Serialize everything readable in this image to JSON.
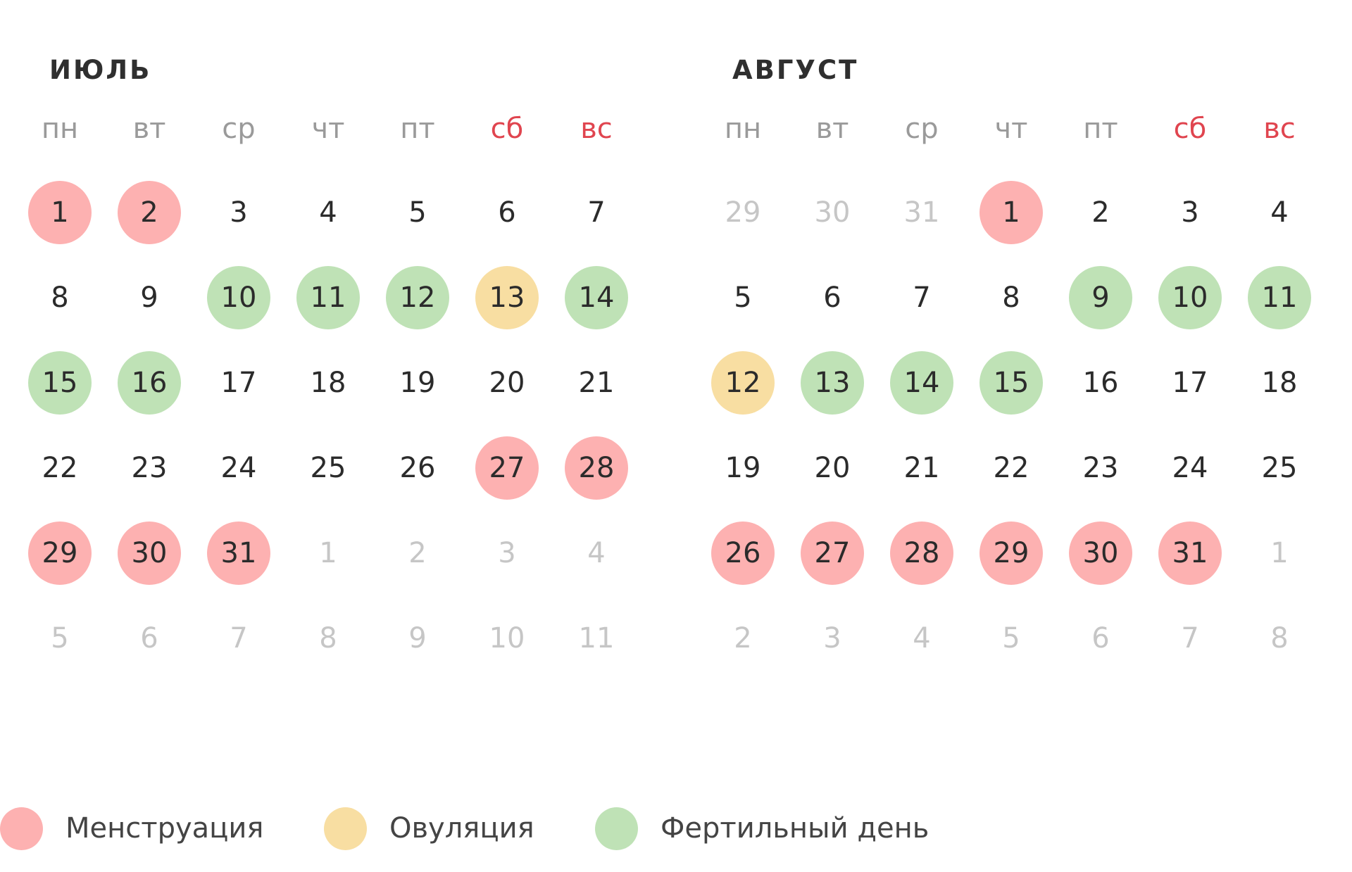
{
  "weekday_labels": [
    "пн",
    "вт",
    "ср",
    "чт",
    "пт",
    "сб",
    "вс"
  ],
  "weekend_color": "#e0454f",
  "colors": {
    "menstruation": "#fdb1b1",
    "ovulation": "#f8dea2",
    "fertile": "#bfe2b6",
    "current_month_text": "#2b2b2b",
    "adjacent_month_text": "#c6c6c6"
  },
  "months": [
    {
      "title": "ИЮЛЬ",
      "weeks": [
        [
          {
            "d": "1",
            "s": "menstruation"
          },
          {
            "d": "2",
            "s": "menstruation"
          },
          {
            "d": "3"
          },
          {
            "d": "4"
          },
          {
            "d": "5"
          },
          {
            "d": "6"
          },
          {
            "d": "7"
          }
        ],
        [
          {
            "d": "8"
          },
          {
            "d": "9"
          },
          {
            "d": "10",
            "s": "fertile"
          },
          {
            "d": "11",
            "s": "fertile"
          },
          {
            "d": "12",
            "s": "fertile"
          },
          {
            "d": "13",
            "s": "ovulation"
          },
          {
            "d": "14",
            "s": "fertile"
          }
        ],
        [
          {
            "d": "15",
            "s": "fertile"
          },
          {
            "d": "16",
            "s": "fertile"
          },
          {
            "d": "17"
          },
          {
            "d": "18"
          },
          {
            "d": "19"
          },
          {
            "d": "20"
          },
          {
            "d": "21"
          }
        ],
        [
          {
            "d": "22"
          },
          {
            "d": "23"
          },
          {
            "d": "24"
          },
          {
            "d": "25"
          },
          {
            "d": "26"
          },
          {
            "d": "27",
            "s": "menstruation"
          },
          {
            "d": "28",
            "s": "menstruation"
          }
        ],
        [
          {
            "d": "29",
            "s": "menstruation"
          },
          {
            "d": "30",
            "s": "menstruation"
          },
          {
            "d": "31",
            "s": "menstruation"
          },
          {
            "d": "1",
            "o": true
          },
          {
            "d": "2",
            "o": true
          },
          {
            "d": "3",
            "o": true
          },
          {
            "d": "4",
            "o": true
          }
        ],
        [
          {
            "d": "5",
            "o": true
          },
          {
            "d": "6",
            "o": true
          },
          {
            "d": "7",
            "o": true
          },
          {
            "d": "8",
            "o": true
          },
          {
            "d": "9",
            "o": true
          },
          {
            "d": "10",
            "o": true
          },
          {
            "d": "11",
            "o": true
          }
        ]
      ]
    },
    {
      "title": "АВГУСТ",
      "weeks": [
        [
          {
            "d": "29",
            "o": true
          },
          {
            "d": "30",
            "o": true
          },
          {
            "d": "31",
            "o": true
          },
          {
            "d": "1",
            "s": "menstruation"
          },
          {
            "d": "2"
          },
          {
            "d": "3"
          },
          {
            "d": "4"
          }
        ],
        [
          {
            "d": "5"
          },
          {
            "d": "6"
          },
          {
            "d": "7"
          },
          {
            "d": "8"
          },
          {
            "d": "9",
            "s": "fertile"
          },
          {
            "d": "10",
            "s": "fertile"
          },
          {
            "d": "11",
            "s": "fertile"
          }
        ],
        [
          {
            "d": "12",
            "s": "ovulation"
          },
          {
            "d": "13",
            "s": "fertile"
          },
          {
            "d": "14",
            "s": "fertile"
          },
          {
            "d": "15",
            "s": "fertile"
          },
          {
            "d": "16"
          },
          {
            "d": "17"
          },
          {
            "d": "18"
          }
        ],
        [
          {
            "d": "19"
          },
          {
            "d": "20"
          },
          {
            "d": "21"
          },
          {
            "d": "22"
          },
          {
            "d": "23"
          },
          {
            "d": "24"
          },
          {
            "d": "25"
          }
        ],
        [
          {
            "d": "26",
            "s": "menstruation"
          },
          {
            "d": "27",
            "s": "menstruation"
          },
          {
            "d": "28",
            "s": "menstruation"
          },
          {
            "d": "29",
            "s": "menstruation"
          },
          {
            "d": "30",
            "s": "menstruation"
          },
          {
            "d": "31",
            "s": "menstruation"
          },
          {
            "d": "1",
            "o": true
          }
        ],
        [
          {
            "d": "2",
            "o": true
          },
          {
            "d": "3",
            "o": true
          },
          {
            "d": "4",
            "o": true
          },
          {
            "d": "5",
            "o": true
          },
          {
            "d": "6",
            "o": true
          },
          {
            "d": "7",
            "o": true
          },
          {
            "d": "8",
            "o": true
          }
        ]
      ]
    }
  ],
  "legend": [
    {
      "key": "menstruation",
      "label": "Менструация"
    },
    {
      "key": "ovulation",
      "label": "Овуляция"
    },
    {
      "key": "fertile",
      "label": "Фертильный день"
    }
  ]
}
